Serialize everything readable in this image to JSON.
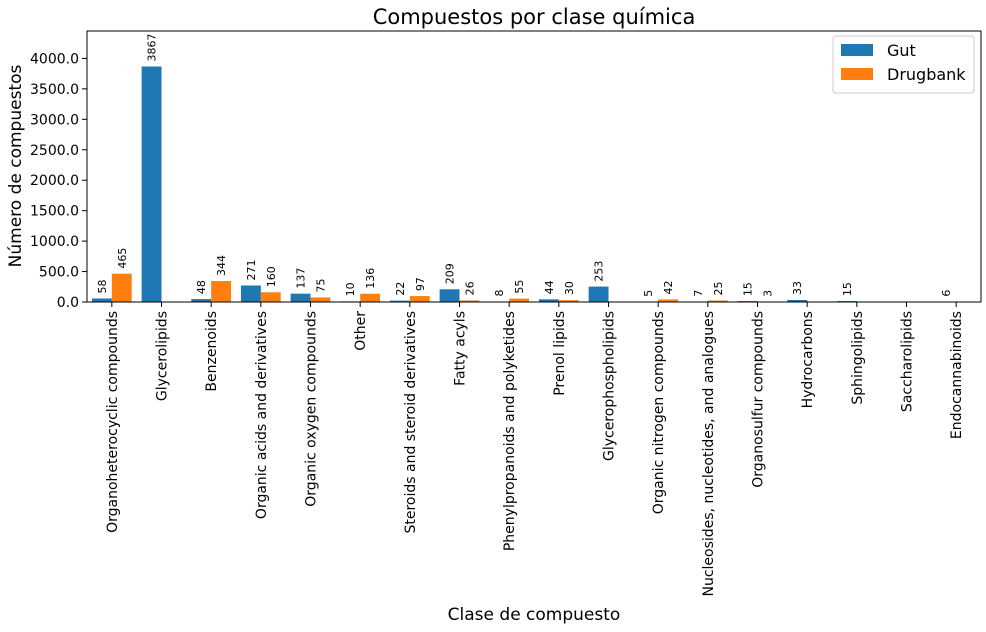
{
  "chart_data": {
    "type": "bar",
    "title": "Compuestos por clase química",
    "xlabel": "Clase de compuesto",
    "ylabel": "Número de compuestos",
    "ylim": [
      0,
      4450
    ],
    "yticks": [
      "0.0",
      "500.0",
      "1000.0",
      "1500.0",
      "2000.0",
      "2500.0",
      "3000.0",
      "3500.0",
      "4000.0"
    ],
    "ytick_values": [
      0,
      500,
      1000,
      1500,
      2000,
      2500,
      3000,
      3500,
      4000
    ],
    "grid": false,
    "legend_position": "top-right",
    "categories": [
      "Organoheterocyclic compounds",
      "Glycerolipids",
      "Benzenoids",
      "Organic acids and derivatives",
      "Organic oxygen compounds",
      "Other",
      "Steroids and steroid derivatives",
      "Fatty acyls",
      "Phenylpropanoids and polyketides",
      "Prenol lipids",
      "Glycerophospholipids",
      "Organic nitrogen compounds",
      "Nucleosides, nucleotides, and analogues",
      "Organosulfur compounds",
      "Hydrocarbons",
      "Sphingolipids",
      "Saccharolipids",
      "Endocannabinoids"
    ],
    "series": [
      {
        "name": "Gut",
        "color": "#1f77b4",
        "values": [
          58,
          3867,
          48,
          271,
          137,
          10,
          22,
          209,
          8,
          44,
          253,
          5,
          7,
          15,
          33,
          15,
          null,
          6
        ]
      },
      {
        "name": "Drugbank",
        "color": "#ff7f0e",
        "values": [
          465,
          null,
          344,
          160,
          75,
          136,
          97,
          26,
          55,
          30,
          null,
          42,
          25,
          3,
          null,
          null,
          null,
          null
        ]
      }
    ]
  }
}
